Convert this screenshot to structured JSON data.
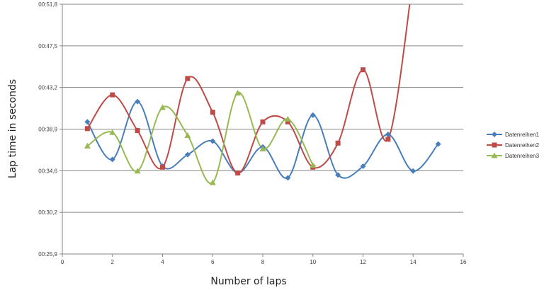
{
  "chart_data": {
    "type": "line",
    "smooth": true,
    "xlabel": "Number of laps",
    "ylabel": "Lap time in seconds",
    "xlim": [
      0,
      16
    ],
    "x_ticks": [
      "0",
      "2",
      "4",
      "6",
      "8",
      "10",
      "12",
      "14",
      "16"
    ],
    "y_ticks": [
      "00:25,9",
      "00:30,2",
      "00:34,6",
      "00:38,9",
      "00:43,2",
      "00:47,5",
      "00:51,8"
    ],
    "ylim_seconds": [
      25.9,
      51.8
    ],
    "grid": "horizontal",
    "legend_position": "right",
    "series": [
      {
        "name": "Datenreihen1",
        "color": "#4a7ebb",
        "marker": "diamond",
        "x": [
          1,
          2,
          3,
          4,
          5,
          6,
          7,
          8,
          9,
          10,
          11,
          12,
          13,
          14,
          15
        ],
        "y": [
          39.6,
          35.7,
          41.7,
          35.0,
          36.2,
          37.6,
          34.3,
          37.0,
          33.8,
          40.3,
          34.1,
          35.0,
          38.3,
          34.5,
          37.3
        ]
      },
      {
        "name": "Datenreihen2",
        "color": "#be4b48",
        "marker": "square",
        "x": [
          1,
          2,
          3,
          4,
          5,
          6,
          7,
          8,
          9,
          10,
          11,
          12,
          13,
          14
        ],
        "y": [
          38.9,
          42.4,
          38.7,
          34.9,
          44.1,
          40.6,
          34.3,
          39.6,
          39.6,
          34.9,
          37.4,
          45.0,
          37.8,
          54.5
        ]
      },
      {
        "name": "Datenreihen3",
        "color": "#98b954",
        "marker": "triangle",
        "x": [
          1,
          2,
          3,
          4,
          5,
          6,
          7,
          8,
          9,
          10
        ],
        "y": [
          37.1,
          38.5,
          34.5,
          41.1,
          38.2,
          33.3,
          42.6,
          36.8,
          39.9,
          35.1
        ]
      }
    ]
  }
}
